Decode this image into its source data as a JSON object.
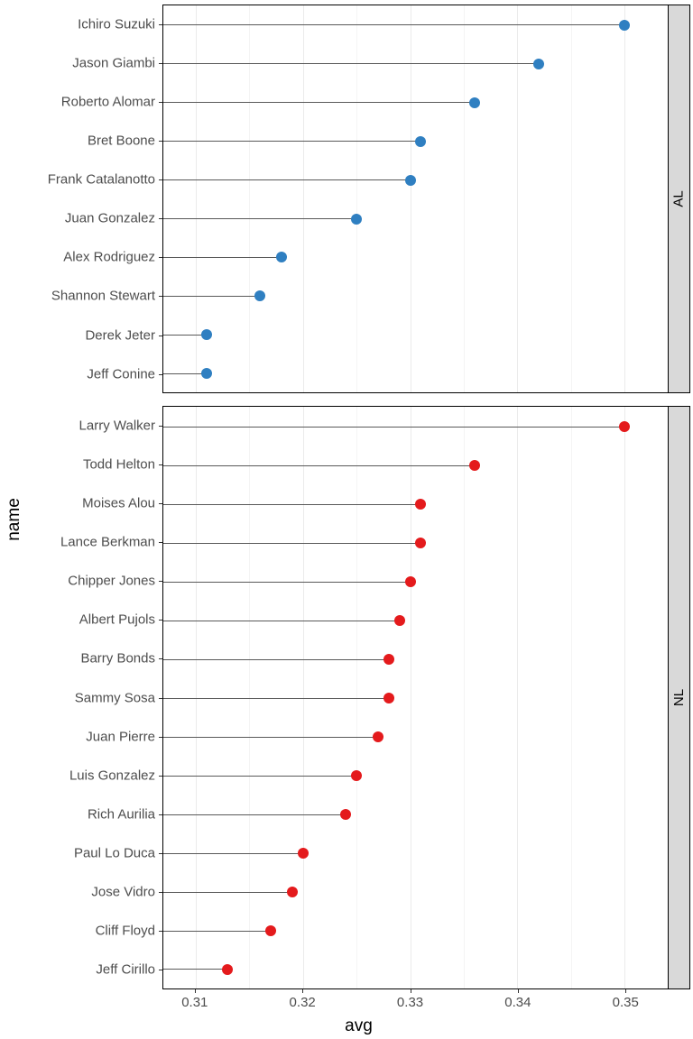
{
  "chart": {
    "type": "lollipop",
    "y_axis_label": "name",
    "x_axis_label": "avg",
    "label_fontsize": 19,
    "tick_fontsize": 15,
    "background_color": "#ffffff",
    "grid_color_major": "#ebebeb",
    "grid_color_minor": "#f4f4f4",
    "panel_border_color": "#000000",
    "x_domain": [
      0.307,
      0.354
    ],
    "x_ticks_major": [
      0.31,
      0.32,
      0.33,
      0.34,
      0.35
    ],
    "x_ticks_minor": [
      0.315,
      0.325,
      0.335,
      0.345
    ],
    "stem_color": "#595959",
    "dot_radius": 6,
    "facets": [
      {
        "label": "AL",
        "dot_color": "#2F7FC1",
        "data": [
          {
            "name": "Ichiro Suzuki",
            "avg": 0.35
          },
          {
            "name": "Jason Giambi",
            "avg": 0.342
          },
          {
            "name": "Roberto Alomar",
            "avg": 0.336
          },
          {
            "name": "Bret Boone",
            "avg": 0.331
          },
          {
            "name": "Frank Catalanotto",
            "avg": 0.33
          },
          {
            "name": "Juan Gonzalez",
            "avg": 0.325
          },
          {
            "name": "Alex Rodriguez",
            "avg": 0.318
          },
          {
            "name": "Shannon Stewart",
            "avg": 0.316
          },
          {
            "name": "Derek Jeter",
            "avg": 0.311
          },
          {
            "name": "Jeff Conine",
            "avg": 0.311
          }
        ]
      },
      {
        "label": "NL",
        "dot_color": "#E41A1C",
        "data": [
          {
            "name": "Larry Walker",
            "avg": 0.35
          },
          {
            "name": "Todd Helton",
            "avg": 0.336
          },
          {
            "name": "Moises Alou",
            "avg": 0.331
          },
          {
            "name": "Lance Berkman",
            "avg": 0.331
          },
          {
            "name": "Chipper Jones",
            "avg": 0.33
          },
          {
            "name": "Albert Pujols",
            "avg": 0.329
          },
          {
            "name": "Barry Bonds",
            "avg": 0.328
          },
          {
            "name": "Sammy Sosa",
            "avg": 0.328
          },
          {
            "name": "Juan Pierre",
            "avg": 0.327
          },
          {
            "name": "Luis Gonzalez",
            "avg": 0.325
          },
          {
            "name": "Rich Aurilia",
            "avg": 0.324
          },
          {
            "name": "Paul Lo Duca",
            "avg": 0.32
          },
          {
            "name": "Jose Vidro",
            "avg": 0.319
          },
          {
            "name": "Cliff Floyd",
            "avg": 0.317
          },
          {
            "name": "Jeff Cirillo",
            "avg": 0.313
          }
        ]
      }
    ]
  }
}
